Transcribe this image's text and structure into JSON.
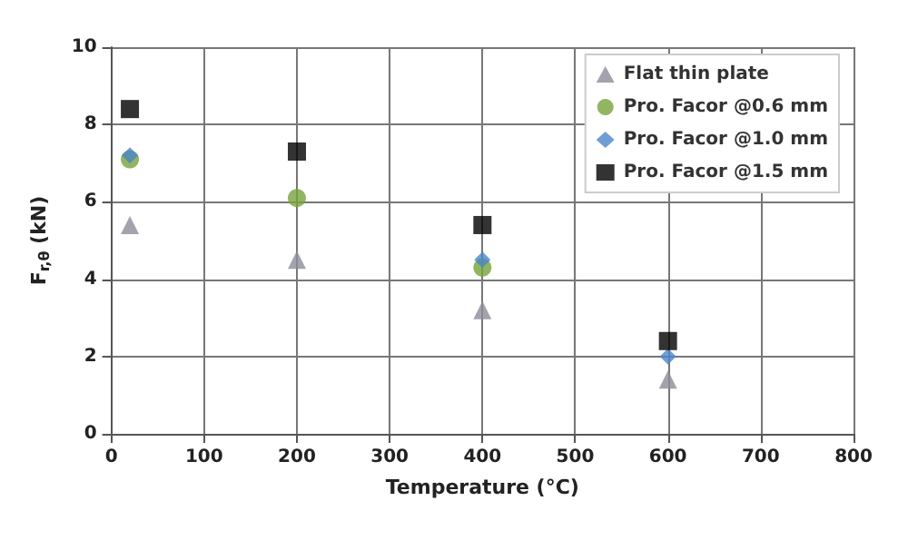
{
  "chart_data": {
    "type": "scatter",
    "xlabel": "Temperature (°C)",
    "ylabel": "F$_{r,θ}$ (kN)",
    "x": [
      20,
      200,
      400,
      600
    ],
    "series": [
      {
        "name": "Flat thin plate",
        "color": "#8c8c9a",
        "marker": "triangle",
        "values": [
          5.4,
          4.5,
          3.2,
          1.4
        ]
      },
      {
        "name": "Pro. Facor @0.6 mm",
        "color": "#77a33a",
        "marker": "circle",
        "values": [
          7.1,
          6.1,
          4.3,
          null
        ]
      },
      {
        "name": "Pro. Facor @1.0 mm",
        "color": "#4a86c8",
        "marker": "diamond",
        "values": [
          7.2,
          null,
          4.5,
          2.0
        ]
      },
      {
        "name": "Pro. Facor @1.5 mm",
        "color": "#000000",
        "marker": "square",
        "values": [
          8.4,
          7.3,
          5.4,
          2.4
        ]
      }
    ],
    "xlim": [
      0,
      800
    ],
    "xticks": [
      0,
      100,
      200,
      300,
      400,
      500,
      600,
      700,
      800
    ],
    "ylim": [
      0,
      10
    ],
    "yticks": [
      0,
      2,
      4,
      6,
      8,
      10
    ],
    "grid": true,
    "legend": "top right"
  }
}
